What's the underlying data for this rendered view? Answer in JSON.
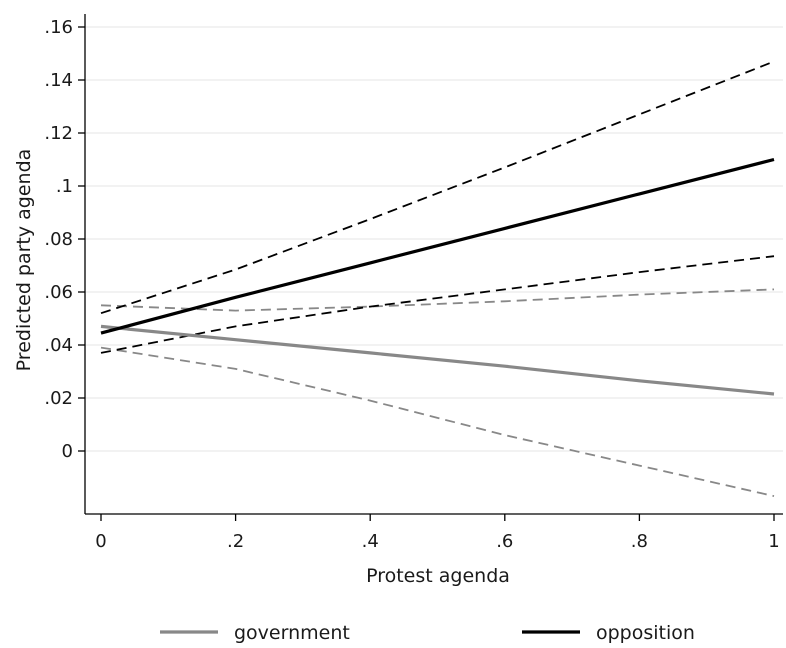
{
  "chart_data": {
    "type": "line",
    "title": "",
    "xlabel": "Protest agenda",
    "ylabel": "Predicted party agenda",
    "xlim": [
      0,
      1
    ],
    "ylim": [
      -0.023,
      0.165
    ],
    "x_ticks": [
      {
        "value": 0,
        "label": "0"
      },
      {
        "value": 0.2,
        "label": ".2"
      },
      {
        "value": 0.4,
        "label": ".4"
      },
      {
        "value": 0.6,
        "label": ".6"
      },
      {
        "value": 0.8,
        "label": ".8"
      },
      {
        "value": 1,
        "label": "1"
      }
    ],
    "y_ticks": [
      {
        "value": 0,
        "label": "0"
      },
      {
        "value": 0.02,
        "label": ".02"
      },
      {
        "value": 0.04,
        "label": ".04"
      },
      {
        "value": 0.06,
        "label": ".06"
      },
      {
        "value": 0.08,
        "label": ".08"
      },
      {
        "value": 0.1,
        "label": ".1"
      },
      {
        "value": 0.12,
        "label": ".12"
      },
      {
        "value": 0.14,
        "label": ".14"
      },
      {
        "value": 0.16,
        "label": ".16"
      }
    ],
    "grid": "horizontal",
    "legend_position": "bottom",
    "series": [
      {
        "name": "government",
        "color": "#888888",
        "x": [
          0,
          0.2,
          0.4,
          0.6,
          0.8,
          1
        ],
        "y": [
          0.047,
          0.042,
          0.037,
          0.032,
          0.0265,
          0.0215
        ],
        "ci_lower": [
          0.039,
          0.031,
          0.019,
          0.006,
          -0.0055,
          -0.017
        ],
        "ci_upper": [
          0.055,
          0.053,
          0.0545,
          0.0565,
          0.059,
          0.061
        ]
      },
      {
        "name": "opposition",
        "color": "#000000",
        "x": [
          0,
          0.2,
          0.4,
          0.6,
          0.8,
          1
        ],
        "y": [
          0.0445,
          0.058,
          0.071,
          0.084,
          0.097,
          0.11
        ],
        "ci_lower": [
          0.037,
          0.047,
          0.0545,
          0.061,
          0.0675,
          0.0735
        ],
        "ci_upper": [
          0.052,
          0.0685,
          0.0875,
          0.107,
          0.127,
          0.147
        ]
      }
    ]
  }
}
